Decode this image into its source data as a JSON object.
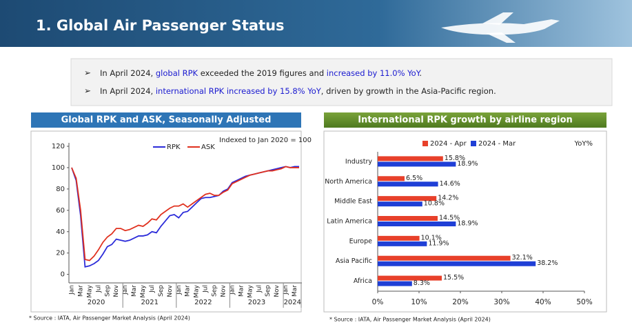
{
  "header": {
    "title": "1. Global Air Passenger Status"
  },
  "bullets": [
    [
      {
        "text": "In April 2024, "
      },
      {
        "text": "global RPK",
        "emphasis": true
      },
      {
        "text": " exceeded the 2019 figures and "
      },
      {
        "text": "increased by 11.0% YoY",
        "emphasis": true
      },
      {
        "text": "."
      }
    ],
    [
      {
        "text": "In April 2024, "
      },
      {
        "text": "international RPK increased by 15.8% YoY",
        "emphasis": true
      },
      {
        "text": ", driven by growth in the Asia-Pacific region."
      }
    ]
  ],
  "chart_data": [
    {
      "type": "line",
      "title": "Global RPK and ASK, Seasonally Adjusted",
      "annotation": "Indexed to Jan 2020 = 100",
      "categories": [
        "Jan",
        null,
        "Mar",
        null,
        "May",
        null,
        "Jul",
        null,
        "Sep",
        null,
        "Nov",
        null,
        "Jan",
        null,
        "Mar",
        null,
        "May",
        null,
        "Jul",
        null,
        "Sep",
        null,
        "Nov",
        null,
        "Jan",
        null,
        "Mar",
        null,
        "May",
        null,
        "Jul",
        null,
        "Sep",
        null,
        "Nov",
        null,
        "Jan",
        null,
        "Mar",
        null,
        "May",
        null,
        "Jul",
        null,
        "Sep",
        null,
        "Nov",
        null,
        "Jan",
        null,
        "Mar",
        null
      ],
      "x_groups": [
        "2020",
        "2021",
        "2022",
        "2023",
        "2024"
      ],
      "series": [
        {
          "name": "RPK",
          "color": "#2b2bd9",
          "values": [
            100,
            88,
            55,
            7,
            8,
            10,
            13,
            19,
            26,
            28,
            33,
            32,
            31,
            32,
            34,
            36,
            36,
            37,
            40,
            39,
            45,
            50,
            55,
            56,
            53,
            58,
            59,
            63,
            67,
            71,
            72,
            72,
            73,
            74,
            78,
            80,
            86,
            88,
            90,
            92,
            93,
            94,
            95,
            96,
            97,
            98,
            99,
            100,
            101,
            100,
            101,
            101
          ]
        },
        {
          "name": "ASK",
          "color": "#e0301e",
          "values": [
            100,
            90,
            60,
            14,
            13,
            17,
            23,
            30,
            35,
            38,
            43,
            43,
            41,
            42,
            44,
            46,
            45,
            48,
            52,
            51,
            56,
            59,
            62,
            64,
            64,
            66,
            63,
            66,
            69,
            72,
            75,
            76,
            74,
            74,
            77,
            79,
            85,
            87,
            89,
            91,
            93,
            94,
            95,
            96,
            97,
            97,
            98,
            99,
            101,
            100,
            100,
            100
          ]
        }
      ],
      "ylim": [
        -8,
        120
      ],
      "yticks": [
        0,
        20,
        40,
        60,
        80,
        100,
        120
      ],
      "source": "* Source : IATA, Air Passenger Market Analysis (April 2024)"
    },
    {
      "type": "hbar",
      "title": "International RPK growth by airline region",
      "annotation": "YoY%",
      "categories": [
        "Industry",
        "North America",
        "Middle East",
        "Latin America",
        "Europe",
        "Asia Pacific",
        "Africa"
      ],
      "series": [
        {
          "name": "2024 - Apr",
          "color": "#e8402a",
          "values": [
            15.8,
            6.5,
            14.2,
            14.5,
            10.1,
            32.1,
            15.5
          ],
          "value_labels": [
            "15.8%",
            "6.5%",
            "14.2%",
            "14.5%",
            "10.1%",
            "32.1%",
            "15.5%"
          ]
        },
        {
          "name": "2024 - Mar",
          "color": "#1f3fd6",
          "values": [
            18.9,
            14.6,
            10.8,
            18.9,
            11.9,
            38.2,
            8.3
          ],
          "value_labels": [
            "18.9%",
            "14.6%",
            "10.8%",
            "18.9%",
            "11.9%",
            "38.2%",
            "8.3%"
          ]
        }
      ],
      "xlim": [
        0,
        50
      ],
      "xticks": [
        {
          "value": 0,
          "label": "0%"
        },
        {
          "value": 10,
          "label": "10%"
        },
        {
          "value": 20,
          "label": "20%"
        },
        {
          "value": 30,
          "label": "30%"
        },
        {
          "value": 40,
          "label": "40%"
        },
        {
          "value": 50,
          "label": "50%"
        }
      ],
      "source": "* Source : IATA, Air Passenger Market Analysis (April 2024)"
    }
  ]
}
